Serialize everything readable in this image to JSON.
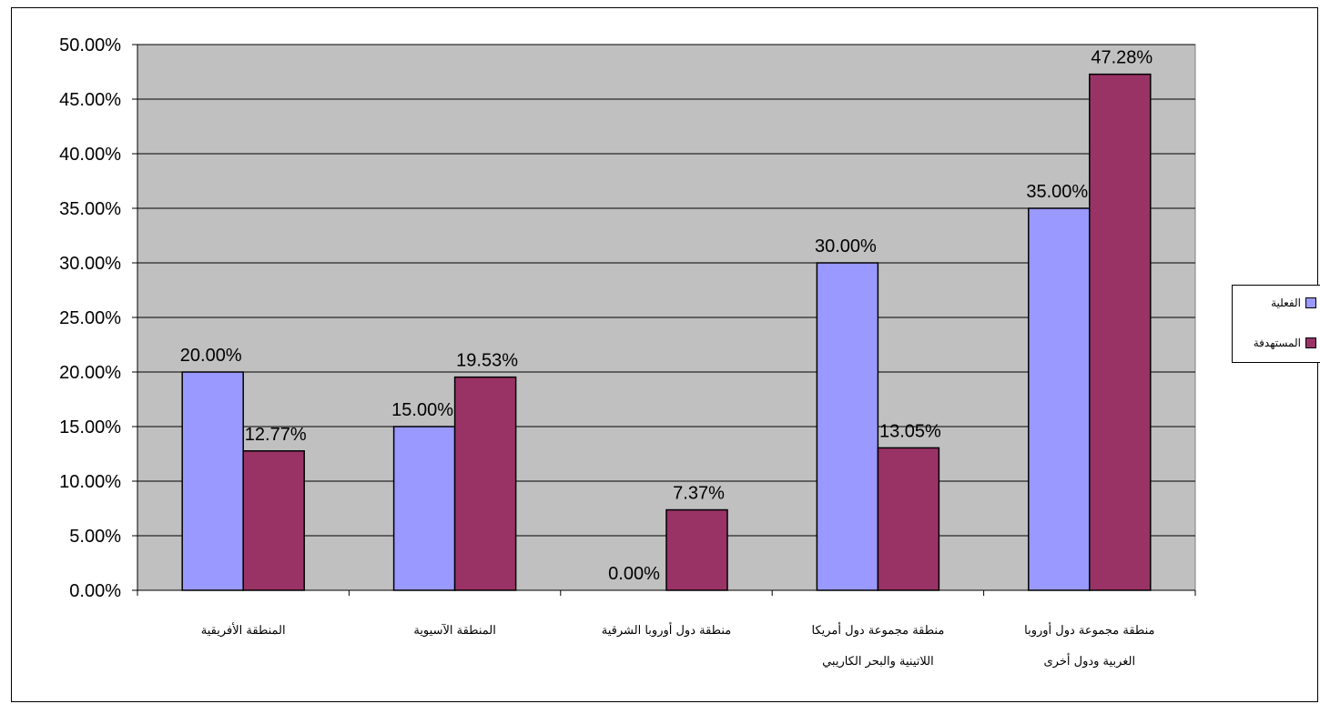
{
  "chart_data": {
    "type": "bar",
    "categories": [
      [
        "المنطقة الأفريقية"
      ],
      [
        "المنطقة الآسيوية"
      ],
      [
        "منطقة دول أوروبا الشرقية"
      ],
      [
        "منطقة مجموعة دول أمريكا",
        "اللاتينية والبحر الكاريبي"
      ],
      [
        "منطقة مجموعة دول أوروبا",
        "الغربية ودول أخرى"
      ]
    ],
    "series": [
      {
        "name": "الفعلية",
        "color": "#9999ff",
        "values": [
          20.0,
          15.0,
          0.0,
          30.0,
          35.0
        ],
        "labels": [
          "20.00%",
          "15.00%",
          "0.00%",
          "30.00%",
          "35.00%"
        ]
      },
      {
        "name": "المستهدفة",
        "color": "#993366",
        "values": [
          12.77,
          19.53,
          7.37,
          13.05,
          47.28
        ],
        "labels": [
          "12.77%",
          "19.53%",
          "7.37%",
          "13.05%",
          "47.28%"
        ]
      }
    ],
    "ylim": [
      0,
      50
    ],
    "yticks": [
      0,
      5,
      10,
      15,
      20,
      25,
      30,
      35,
      40,
      45,
      50
    ],
    "ytick_labels": [
      "0.00%",
      "5.00%",
      "10.00%",
      "15.00%",
      "20.00%",
      "25.00%",
      "30.00%",
      "35.00%",
      "40.00%",
      "45.00%",
      "50.00%"
    ],
    "title": "",
    "xlabel": "",
    "ylabel": "",
    "grid": true,
    "plot_background": "#c0c0c0",
    "legend_position": "right"
  }
}
